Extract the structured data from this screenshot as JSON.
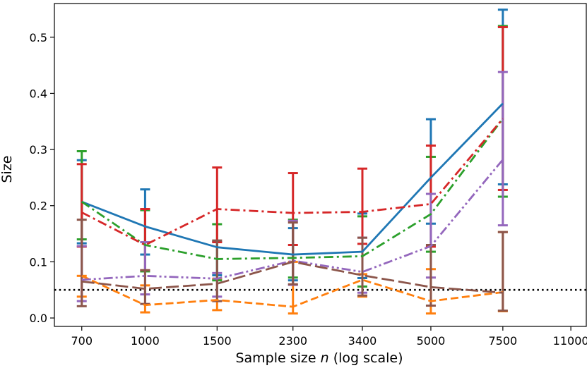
{
  "chart_data": {
    "type": "line",
    "title": "",
    "xlabel_prefix": "Sample size ",
    "xlabel_var": "n",
    "xlabel_suffix": " (log scale)",
    "ylabel": "Size",
    "x_scale": "log",
    "categories": [
      "700",
      "1000",
      "1500",
      "2300",
      "3400",
      "5000",
      "7500",
      "11000"
    ],
    "x": [
      700,
      1000,
      1500,
      2300,
      3400,
      5000,
      7500,
      11000
    ],
    "xlim": [
      600,
      12000
    ],
    "ylim": [
      -0.015,
      0.56
    ],
    "yticks": [
      0.0,
      0.1,
      0.2,
      0.3,
      0.4,
      0.5
    ],
    "ytick_labels": [
      "0.0",
      "0.1",
      "0.2",
      "0.3",
      "0.4",
      "0.5"
    ],
    "reference_line": {
      "y": 0.05,
      "style": "dotted",
      "color": "#000000"
    },
    "series": [
      {
        "name": "series-blue",
        "color": "#1f77b4",
        "dash": "solid",
        "x": [
          700,
          1000,
          1500,
          2300,
          3400,
          5000,
          7500
        ],
        "values": [
          0.207,
          0.163,
          0.126,
          0.113,
          0.118,
          0.25,
          0.382
        ],
        "lower": [
          0.133,
          0.113,
          0.076,
          0.067,
          0.071,
          0.168,
          0.238
        ],
        "upper": [
          0.281,
          0.229,
          0.136,
          0.16,
          0.186,
          0.354,
          0.549
        ]
      },
      {
        "name": "series-orange",
        "color": "#ff7f0e",
        "dash": "dashed",
        "x": [
          700,
          1000,
          1500,
          2300,
          3400,
          5000,
          7500
        ],
        "values": [
          0.075,
          0.023,
          0.032,
          0.02,
          0.068,
          0.03,
          0.046
        ],
        "lower": [
          0.038,
          0.01,
          0.014,
          0.008,
          0.038,
          0.008,
          0.012
        ],
        "upper": [
          0.075,
          0.058,
          0.07,
          0.1,
          0.078,
          0.087,
          0.153
        ]
      },
      {
        "name": "series-green",
        "color": "#2ca02c",
        "dash": "dashdot",
        "x": [
          700,
          1000,
          1500,
          2300,
          3400,
          5000,
          7500
        ],
        "values": [
          0.207,
          0.13,
          0.105,
          0.107,
          0.11,
          0.185,
          0.355
        ],
        "lower": [
          0.14,
          0.083,
          0.067,
          0.072,
          0.056,
          0.118,
          0.216
        ],
        "upper": [
          0.297,
          0.192,
          0.167,
          0.175,
          0.181,
          0.287,
          0.52
        ]
      },
      {
        "name": "series-red",
        "color": "#d62728",
        "dash": "dashdot",
        "x": [
          700,
          1000,
          1500,
          2300,
          3400,
          5000,
          7500
        ],
        "values": [
          0.188,
          0.13,
          0.194,
          0.187,
          0.189,
          0.203,
          0.355
        ],
        "lower": [
          0.127,
          0.085,
          0.135,
          0.13,
          0.132,
          0.127,
          0.228
        ],
        "upper": [
          0.274,
          0.194,
          0.268,
          0.258,
          0.266,
          0.307,
          0.518
        ]
      },
      {
        "name": "series-purple",
        "color": "#9467bd",
        "dash": "dashdotdot",
        "x": [
          700,
          1000,
          1500,
          2300,
          3400,
          5000,
          7500
        ],
        "values": [
          0.068,
          0.075,
          0.07,
          0.102,
          0.082,
          0.128,
          0.282
        ],
        "lower": [
          0.03,
          0.042,
          0.038,
          0.059,
          0.045,
          0.072,
          0.165
        ],
        "upper": [
          0.128,
          0.135,
          0.08,
          0.173,
          0.143,
          0.221,
          0.438
        ]
      },
      {
        "name": "series-brown",
        "color": "#8c564b",
        "dash": "longdash",
        "x": [
          700,
          1000,
          1500,
          2300,
          3400,
          5000,
          7500
        ],
        "values": [
          0.065,
          0.052,
          0.061,
          0.1,
          0.076,
          0.055,
          0.045
        ],
        "lower": [
          0.021,
          0.025,
          0.03,
          0.06,
          0.04,
          0.022,
          0.013
        ],
        "upper": [
          0.175,
          0.085,
          0.138,
          0.17,
          0.143,
          0.13,
          0.153
        ]
      }
    ]
  }
}
